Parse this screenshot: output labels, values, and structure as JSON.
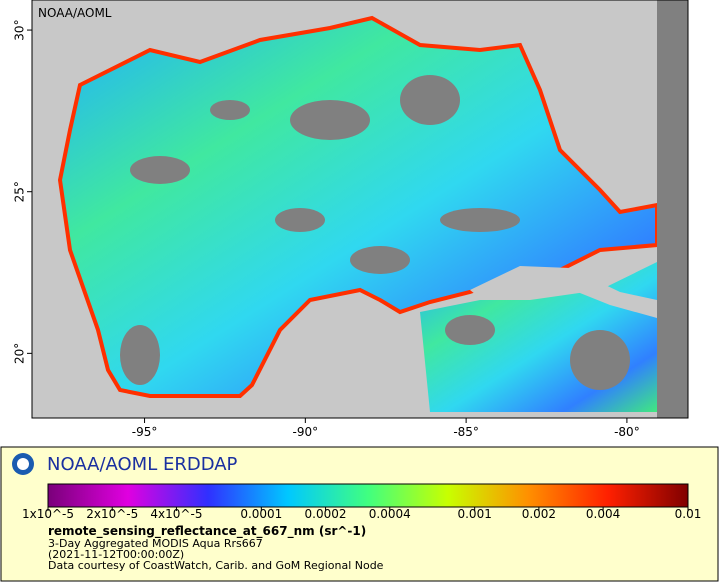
{
  "map": {
    "watermark": "NOAA/AOML",
    "lon_range": [
      -98.5,
      -78.1
    ],
    "lat_range": [
      18,
      30.93
    ],
    "lon_ticks": [
      {
        "value": -95,
        "label": "-95°"
      },
      {
        "value": -90,
        "label": "-90°"
      },
      {
        "value": -85,
        "label": "-85°"
      },
      {
        "value": -80,
        "label": "-80°"
      }
    ],
    "lat_ticks": [
      {
        "value": 30,
        "label": "30°"
      },
      {
        "value": 25,
        "label": "25°"
      },
      {
        "value": 20,
        "label": "20°"
      }
    ]
  },
  "legend": {
    "brand": "NOAA/AOML ERDDAP",
    "colorbar": {
      "range": [
        1e-05,
        0.01
      ],
      "log": true,
      "colors": [
        "#7a007a",
        "#e000e0",
        "#3030ff",
        "#00c8ff",
        "#40ff80",
        "#c8ff00",
        "#ff9000",
        "#ff2000",
        "#800000"
      ],
      "ticks": [
        {
          "value": 1e-05,
          "label": "1x10^-5"
        },
        {
          "value": 2e-05,
          "label": "2x10^-5"
        },
        {
          "value": 4e-05,
          "label": "4x10^-5"
        },
        0.0001,
        0.0002,
        0.0004,
        0.001,
        0.002,
        0.004,
        0.01
      ]
    },
    "variable": "remote_sensing_reflectance_at_667_nm (sr^-1)",
    "lines": [
      "3-Day Aggregated MODIS Aqua Rrs667",
      "(2021-11-12T00:00:00Z)",
      "Data courtesy of CoastWatch, Carib. and GoM Regional Node"
    ]
  }
}
